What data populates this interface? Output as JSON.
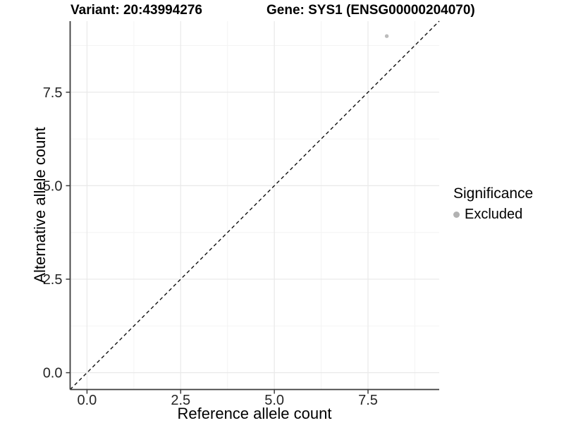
{
  "chart_data": {
    "type": "scatter",
    "title_left": "Variant: 20:43994276",
    "title_right": "Gene: SYS1 (ENSG00000204070)",
    "xlabel": "Reference allele count",
    "ylabel": "Alternative allele count",
    "xlim": [
      -0.45,
      9.4
    ],
    "ylim": [
      -0.45,
      9.4
    ],
    "x_ticks": [
      0,
      2.5,
      5,
      7.5
    ],
    "y_ticks": [
      0,
      2.5,
      5,
      7.5
    ],
    "x_minor_ticks": [
      1.25,
      3.75,
      6.25,
      8.75
    ],
    "y_minor_ticks": [
      1.25,
      3.75,
      6.25,
      8.75
    ],
    "grid": "major_and_minor",
    "legend_position": "right",
    "identity_line": {
      "slope": 1,
      "intercept": 0,
      "style": "dashed",
      "color": "#111111"
    },
    "series": [
      {
        "name": "Excluded",
        "color": "#bcbcbc",
        "points": [
          [
            8,
            9
          ]
        ]
      }
    ],
    "legend": {
      "title": "Significance",
      "items": [
        {
          "label": "Excluded",
          "color": "#b2b2b2"
        }
      ]
    }
  },
  "colors": {
    "background": "#ffffff",
    "axis_line": "#3c3c3c",
    "tick_mark": "#3c3c3c",
    "tick_label": "#262626",
    "major_grid": "#e9e9e9",
    "minor_grid": "#f4f4f4",
    "title_text": "#000000"
  }
}
